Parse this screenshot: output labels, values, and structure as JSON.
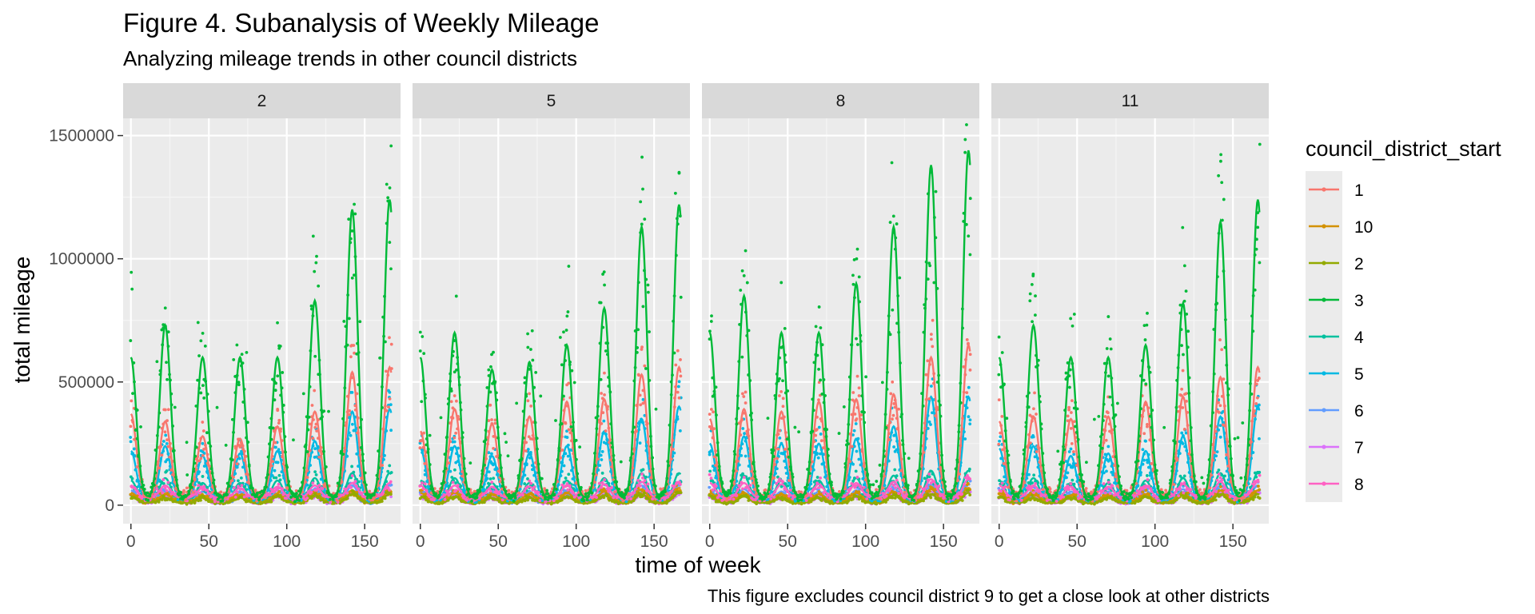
{
  "title": "Figure 4. Subanalysis of Weekly Mileage",
  "subtitle": "Analyzing mileage trends in other council districts",
  "caption": "This figure excludes council district 9 to get a close look at other districts",
  "chart_data": {
    "type": "line",
    "layout": "facet-wrap",
    "facet_labels": [
      "2",
      "5",
      "8",
      "11"
    ],
    "xlabel": "time of week",
    "ylabel": "total mileage",
    "xlim": [
      -5,
      173
    ],
    "ylim": [
      -75000,
      1570000
    ],
    "x_ticks": [
      0,
      50,
      100,
      150
    ],
    "x_tick_labels": [
      "0",
      "50",
      "100",
      "150"
    ],
    "y_ticks": [
      0,
      500000,
      1000000,
      1500000
    ],
    "y_tick_labels": [
      "0",
      "500000",
      "1000000",
      "1500000"
    ],
    "grid": true,
    "legend": {
      "title": "council_district_start",
      "position": "right"
    },
    "point_style": "scatter points with smoothed trend line per series",
    "x_range": [
      0,
      167
    ],
    "peak_weeks": [
      0,
      22,
      46,
      70,
      94,
      118,
      142,
      166
    ],
    "series": [
      {
        "name": "1",
        "color": "#F8766D",
        "baseline": 40000,
        "peaks_by_facet": [
          [
            370000,
            340000,
            280000,
            270000,
            320000,
            380000,
            540000,
            560000
          ],
          [
            300000,
            390000,
            330000,
            360000,
            420000,
            430000,
            530000,
            560000
          ],
          [
            350000,
            390000,
            380000,
            420000,
            430000,
            450000,
            600000,
            650000
          ],
          [
            340000,
            360000,
            350000,
            360000,
            420000,
            440000,
            520000,
            560000
          ]
        ]
      },
      {
        "name": "10",
        "color": "#D39200",
        "baseline": 15000,
        "peaks_by_facet": [
          [
            50000,
            45000,
            40000,
            40000,
            45000,
            50000,
            60000,
            60000
          ],
          [
            50000,
            50000,
            45000,
            45000,
            50000,
            55000,
            65000,
            70000
          ],
          [
            50000,
            50000,
            45000,
            45000,
            50000,
            55000,
            65000,
            70000
          ],
          [
            50000,
            45000,
            40000,
            40000,
            45000,
            50000,
            60000,
            60000
          ]
        ]
      },
      {
        "name": "2",
        "color": "#93AA00",
        "baseline": 10000,
        "peaks_by_facet": [
          [
            35000,
            30000,
            30000,
            30000,
            35000,
            40000,
            45000,
            45000
          ],
          [
            35000,
            35000,
            30000,
            30000,
            35000,
            40000,
            45000,
            50000
          ],
          [
            35000,
            35000,
            30000,
            30000,
            35000,
            40000,
            45000,
            50000
          ],
          [
            35000,
            30000,
            30000,
            30000,
            35000,
            40000,
            45000,
            45000
          ]
        ]
      },
      {
        "name": "3",
        "color": "#00BA38",
        "baseline": 30000,
        "peaks_by_facet": [
          [
            600000,
            730000,
            600000,
            600000,
            600000,
            830000,
            1200000,
            1240000
          ],
          [
            600000,
            700000,
            550000,
            580000,
            650000,
            800000,
            1130000,
            1220000
          ],
          [
            700000,
            850000,
            700000,
            700000,
            900000,
            1130000,
            1380000,
            1440000
          ],
          [
            600000,
            730000,
            600000,
            600000,
            650000,
            820000,
            1150000,
            1240000
          ]
        ]
      },
      {
        "name": "4",
        "color": "#00C19F",
        "baseline": 20000,
        "peaks_by_facet": [
          [
            100000,
            110000,
            90000,
            90000,
            100000,
            110000,
            130000,
            130000
          ],
          [
            100000,
            110000,
            90000,
            90000,
            100000,
            110000,
            130000,
            130000
          ],
          [
            110000,
            120000,
            100000,
            100000,
            110000,
            120000,
            140000,
            140000
          ],
          [
            100000,
            110000,
            90000,
            90000,
            100000,
            110000,
            130000,
            130000
          ]
        ]
      },
      {
        "name": "5",
        "color": "#00B9E3",
        "baseline": 25000,
        "peaks_by_facet": [
          [
            220000,
            240000,
            200000,
            210000,
            220000,
            260000,
            380000,
            390000
          ],
          [
            230000,
            240000,
            200000,
            210000,
            240000,
            300000,
            350000,
            400000
          ],
          [
            250000,
            280000,
            250000,
            250000,
            270000,
            320000,
            440000,
            440000
          ],
          [
            230000,
            240000,
            200000,
            210000,
            220000,
            280000,
            360000,
            400000
          ]
        ]
      },
      {
        "name": "6",
        "color": "#619CFF",
        "baseline": 15000,
        "peaks_by_facet": [
          [
            60000,
            60000,
            55000,
            55000,
            60000,
            65000,
            80000,
            80000
          ],
          [
            60000,
            60000,
            55000,
            55000,
            60000,
            65000,
            80000,
            80000
          ],
          [
            60000,
            65000,
            55000,
            55000,
            60000,
            70000,
            85000,
            85000
          ],
          [
            60000,
            60000,
            55000,
            55000,
            60000,
            65000,
            80000,
            80000
          ]
        ]
      },
      {
        "name": "7",
        "color": "#DB72FB",
        "baseline": 10000,
        "peaks_by_facet": [
          [
            40000,
            40000,
            35000,
            35000,
            40000,
            45000,
            50000,
            50000
          ],
          [
            40000,
            40000,
            35000,
            35000,
            40000,
            45000,
            50000,
            50000
          ],
          [
            40000,
            40000,
            35000,
            35000,
            40000,
            45000,
            55000,
            55000
          ],
          [
            40000,
            40000,
            35000,
            35000,
            40000,
            45000,
            50000,
            50000
          ]
        ]
      },
      {
        "name": "8",
        "color": "#FF61C3",
        "baseline": 30000,
        "peaks_by_facet": [
          [
            80000,
            80000,
            70000,
            70000,
            75000,
            80000,
            90000,
            90000
          ],
          [
            80000,
            80000,
            75000,
            75000,
            80000,
            85000,
            95000,
            95000
          ],
          [
            90000,
            90000,
            85000,
            85000,
            90000,
            95000,
            105000,
            105000
          ],
          [
            80000,
            80000,
            75000,
            75000,
            80000,
            85000,
            95000,
            95000
          ]
        ]
      }
    ]
  }
}
